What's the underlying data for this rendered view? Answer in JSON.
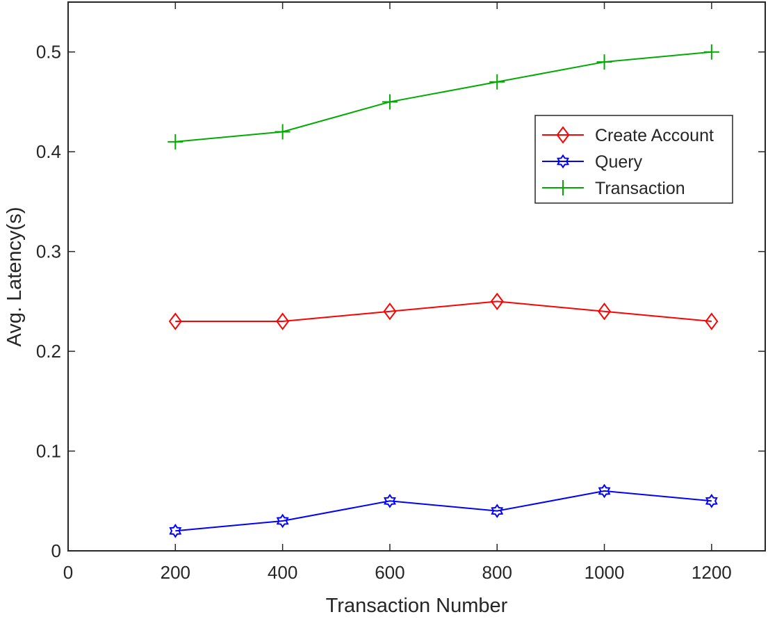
{
  "chart_data": {
    "type": "line",
    "title": "",
    "xlabel": "Transaction Number",
    "ylabel": "Avg. Latency(s)",
    "xlim": [
      0,
      1300
    ],
    "ylim": [
      0,
      0.55
    ],
    "xticks": [
      0,
      200,
      400,
      600,
      800,
      1000,
      1200
    ],
    "xtick_labels": [
      "0",
      "200",
      "400",
      "600",
      "800",
      "1000",
      "1200"
    ],
    "yticks": [
      0,
      0.1,
      0.2,
      0.3,
      0.4,
      0.5
    ],
    "ytick_labels": [
      "0",
      "0.1",
      "0.2",
      "0.3",
      "0.4",
      "0.5"
    ],
    "grid": false,
    "legend_position": "upper-right",
    "x": [
      200,
      400,
      600,
      800,
      1000,
      1200
    ],
    "series": [
      {
        "name": "Create Account",
        "marker": "diamond",
        "color": "#ff0000",
        "values": [
          0.23,
          0.23,
          0.24,
          0.25,
          0.24,
          0.23
        ]
      },
      {
        "name": "Query",
        "marker": "hexagram",
        "color": "#0000ff",
        "values": [
          0.02,
          0.03,
          0.05,
          0.04,
          0.06,
          0.05
        ]
      },
      {
        "name": "Transaction",
        "marker": "plus",
        "color": "#00aa00",
        "values": [
          0.41,
          0.42,
          0.45,
          0.47,
          0.49,
          0.5
        ]
      }
    ]
  }
}
